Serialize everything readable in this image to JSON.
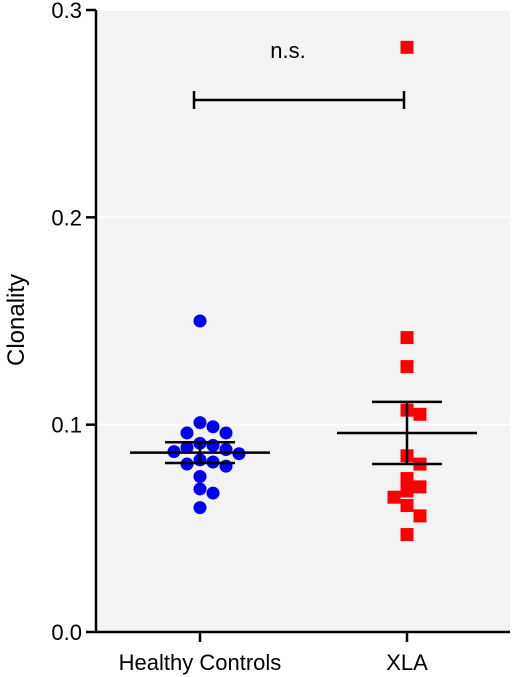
{
  "chart_data": {
    "type": "scatter",
    "ylabel": "Clonality",
    "xlabel": "",
    "ylim": [
      0,
      0.3
    ],
    "yticks": [
      "0.0",
      "0.1",
      "0.2",
      "0.3"
    ],
    "grid": "horizontal",
    "categories": [
      "Healthy Controls",
      "XLA"
    ],
    "series": [
      {
        "category": "Healthy Controls",
        "color": "#0000ee",
        "marker": "circle",
        "values": [
          0.15,
          0.101,
          0.099,
          0.096,
          0.096,
          0.091,
          0.09,
          0.089,
          0.088,
          0.087,
          0.086,
          0.083,
          0.082,
          0.081,
          0.08,
          0.075,
          0.069,
          0.067,
          0.06
        ],
        "mean": 0.0865,
        "sem": [
          0.0815,
          0.0915
        ]
      },
      {
        "category": "XLA",
        "color": "#ff0000",
        "marker": "square",
        "values": [
          0.282,
          0.142,
          0.128,
          0.107,
          0.105,
          0.085,
          0.081,
          0.074,
          0.07,
          0.068,
          0.065,
          0.061,
          0.056,
          0.047
        ],
        "mean": 0.096,
        "sem": [
          0.081,
          0.111
        ]
      }
    ],
    "annotation": {
      "text": "n.s.",
      "type": "significance-bracket"
    }
  }
}
